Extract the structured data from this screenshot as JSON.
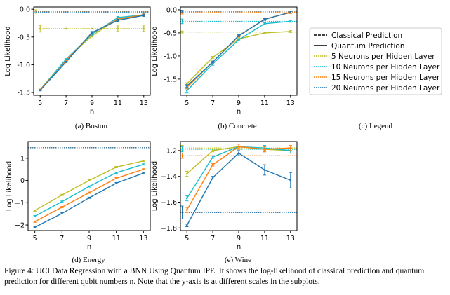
{
  "colors": {
    "c5": "#bcbd22",
    "c10": "#17becf",
    "c15": "#ff7f0e",
    "c20": "#1f77b4",
    "classical": "#555555"
  },
  "chart_data": [
    {
      "type": "line",
      "subplot_label": "(a) Boston",
      "xlabel": "n",
      "ylabel": "Log Likelihood",
      "x": [
        5,
        7,
        9,
        11,
        13
      ],
      "xlim": [
        4.5,
        13.5
      ],
      "ylim": [
        -1.55,
        0.04
      ],
      "xticks": [
        5,
        7,
        9,
        11,
        13
      ],
      "yticks": [
        0.0,
        -0.5,
        -1.0,
        -1.5
      ],
      "ytick_labels": [
        "0.0",
        "-0.5",
        "-1.0",
        "-1.5"
      ],
      "classical": {
        "5": -0.04,
        "10": -0.05,
        "15": -0.04,
        "20": -0.05
      },
      "classical_err": {
        "5": 0.03,
        "10": 0,
        "15": 0,
        "20": 0
      },
      "series": [
        {
          "neurons": "5",
          "values": [
            -0.35,
            -0.35,
            -0.35,
            -0.35,
            -0.35
          ],
          "errors": [
            0.06,
            0,
            0,
            0.05,
            0.05
          ],
          "quantum": false
        },
        {
          "neurons": "5",
          "values": [
            -1.45,
            -0.9,
            -0.48,
            -0.17,
            -0.1
          ],
          "errors": [
            0.01,
            0.01,
            0.02,
            0.02,
            0.02
          ],
          "quantum": true
        },
        {
          "neurons": "10",
          "values": [
            -1.45,
            -0.9,
            -0.45,
            -0.15,
            -0.1
          ],
          "errors": [
            0.01,
            0.01,
            0.02,
            0.02,
            0.02
          ],
          "quantum": true
        },
        {
          "neurons": "15",
          "values": [
            -1.45,
            -0.93,
            -0.43,
            -0.18,
            -0.1
          ],
          "errors": [
            0.01,
            0.01,
            0.02,
            0.02,
            0.02
          ],
          "quantum": true
        },
        {
          "neurons": "20",
          "values": [
            -1.46,
            -0.95,
            -0.42,
            -0.2,
            -0.11
          ],
          "errors": [
            0.01,
            0.01,
            0.02,
            0.02,
            0.02
          ],
          "quantum": true
        }
      ]
    },
    {
      "type": "line",
      "subplot_label": "(b) Concrete",
      "xlabel": "n",
      "ylabel": "Log Likelihood",
      "x": [
        5,
        7,
        9,
        11,
        13
      ],
      "xlim": [
        4.5,
        13.5
      ],
      "ylim": [
        -1.85,
        0.06
      ],
      "xticks": [
        5,
        7,
        9,
        11,
        13
      ],
      "yticks": [
        0.0,
        -0.5,
        -1.0,
        -1.5
      ],
      "ytick_labels": [
        "0.0",
        "-0.5",
        "-1.0",
        "-1.5"
      ],
      "classical": {
        "5": -0.48,
        "10": -0.25,
        "15": -0.05,
        "20": -0.03
      },
      "classical_err": {
        "5": 0.02,
        "10": 0.05,
        "15": 0.04,
        "20": 0.02
      },
      "series": [
        {
          "neurons": "5",
          "values": [
            -1.6,
            -1.03,
            -0.63,
            -0.5,
            -0.47
          ],
          "errors": [
            0.02,
            0.02,
            0.02,
            0.02,
            0.02
          ],
          "quantum": true
        },
        {
          "neurons": "10",
          "values": [
            -1.75,
            -1.17,
            -0.65,
            -0.3,
            -0.25
          ],
          "errors": [
            0.05,
            0.03,
            0.02,
            0.02,
            0.02
          ],
          "quantum": true
        },
        {
          "neurons": "15",
          "values": [
            -1.68,
            -1.13,
            -0.57,
            -0.2,
            -0.06
          ],
          "errors": [
            0.03,
            0.02,
            0.02,
            0.02,
            0.02
          ],
          "quantum": true
        },
        {
          "neurons": "20",
          "values": [
            -1.65,
            -1.13,
            -0.56,
            -0.21,
            -0.05
          ],
          "errors": [
            0.03,
            0.02,
            0.02,
            0.02,
            0.02
          ],
          "quantum": true
        }
      ]
    },
    {
      "type": "line",
      "subplot_label": "(d) Energy",
      "xlabel": "n",
      "ylabel": "Log Likelihood",
      "x": [
        5,
        7,
        9,
        11,
        13
      ],
      "xlim": [
        4.5,
        13.5
      ],
      "ylim": [
        -2.25,
        1.75
      ],
      "xticks": [
        5,
        7,
        9,
        11,
        13
      ],
      "yticks": [
        1,
        0,
        -1,
        -2
      ],
      "ytick_labels": [
        "1",
        "0",
        "−1",
        "−2"
      ],
      "classical": {
        "5": 1.48,
        "10": 1.48,
        "15": 1.48,
        "20": 1.47
      },
      "classical_err": {
        "5": 0,
        "10": 0,
        "15": 0,
        "20": 0
      },
      "series": [
        {
          "neurons": "5",
          "values": [
            -1.35,
            -0.65,
            0.0,
            0.6,
            0.88
          ],
          "errors": [
            0.03,
            0.03,
            0.03,
            0.03,
            0.03
          ],
          "quantum": true
        },
        {
          "neurons": "10",
          "values": [
            -1.6,
            -0.95,
            -0.27,
            0.35,
            0.72
          ],
          "errors": [
            0.03,
            0.03,
            0.03,
            0.03,
            0.03
          ],
          "quantum": true
        },
        {
          "neurons": "15",
          "values": [
            -1.85,
            -1.2,
            -0.55,
            0.1,
            0.5
          ],
          "errors": [
            0.03,
            0.03,
            0.03,
            0.03,
            0.03
          ],
          "quantum": true
        },
        {
          "neurons": "20",
          "values": [
            -2.1,
            -1.48,
            -0.78,
            -0.12,
            0.33
          ],
          "errors": [
            0.03,
            0.03,
            0.03,
            0.03,
            0.03
          ],
          "quantum": true
        }
      ]
    },
    {
      "type": "line",
      "subplot_label": "(e) Wine",
      "xlabel": "n",
      "ylabel": "Log Likelihood",
      "x": [
        5,
        7,
        9,
        11,
        13
      ],
      "xlim": [
        4.5,
        13.5
      ],
      "ylim": [
        -1.82,
        -1.13
      ],
      "xticks": [
        5,
        7,
        9,
        11,
        13
      ],
      "yticks": [
        -1.2,
        -1.4,
        -1.6,
        -1.8
      ],
      "ytick_labels": [
        "−1.2",
        "−1.4",
        "−1.6",
        "−1.8"
      ],
      "classical": {
        "5": -1.18,
        "10": -1.19,
        "15": -1.24,
        "20": -1.68
      },
      "classical_err": {
        "5": 0.02,
        "10": 0.02,
        "15": 0.02,
        "20": 0.05
      },
      "series": [
        {
          "neurons": "5",
          "values": [
            -1.38,
            -1.2,
            -1.17,
            -1.19,
            -1.2
          ],
          "errors": [
            0.02,
            0.01,
            0.02,
            0.02,
            0.02
          ],
          "quantum": true
        },
        {
          "neurons": "10",
          "values": [
            -1.57,
            -1.25,
            -1.17,
            -1.18,
            -1.2
          ],
          "errors": [
            0.02,
            0.01,
            0.02,
            0.02,
            0.02
          ],
          "quantum": true
        },
        {
          "neurons": "15",
          "values": [
            -1.66,
            -1.31,
            -1.17,
            -1.19,
            -1.18
          ],
          "errors": [
            0.02,
            0.01,
            0.02,
            0.02,
            0.02
          ],
          "quantum": true
        },
        {
          "neurons": "20",
          "values": [
            -1.78,
            -1.41,
            -1.22,
            -1.35,
            -1.43
          ],
          "errors": [
            0.01,
            0.01,
            0.02,
            0.04,
            0.06
          ],
          "quantum": true
        }
      ]
    }
  ],
  "legend": {
    "subplot_label": "(c) Legend",
    "entries": [
      {
        "label": "Classical Prediction",
        "style": "dashed",
        "color": "#000000"
      },
      {
        "label": "Quantum Prediction",
        "style": "solid",
        "color": "#000000"
      },
      {
        "label": "5 Neurons per Hidden Layer",
        "style": "dotted",
        "color": "#bcbd22"
      },
      {
        "label": "10 Neurons per Hidden Layer",
        "style": "dotted",
        "color": "#17becf"
      },
      {
        "label": "15 Neurons per Hidden Layer",
        "style": "dotted",
        "color": "#ff7f0e"
      },
      {
        "label": "20 Neurons per Hidden Layer",
        "style": "dotted",
        "color": "#1f77b4"
      }
    ]
  },
  "caption": {
    "text": "Figure 4: UCI Data Regression with a BNN Using Quantum IPE. It shows the log-likelihood of classical prediction and quantum prediction for different qubit numbers n. Note that the y-axis is at different scales in the subplots."
  }
}
